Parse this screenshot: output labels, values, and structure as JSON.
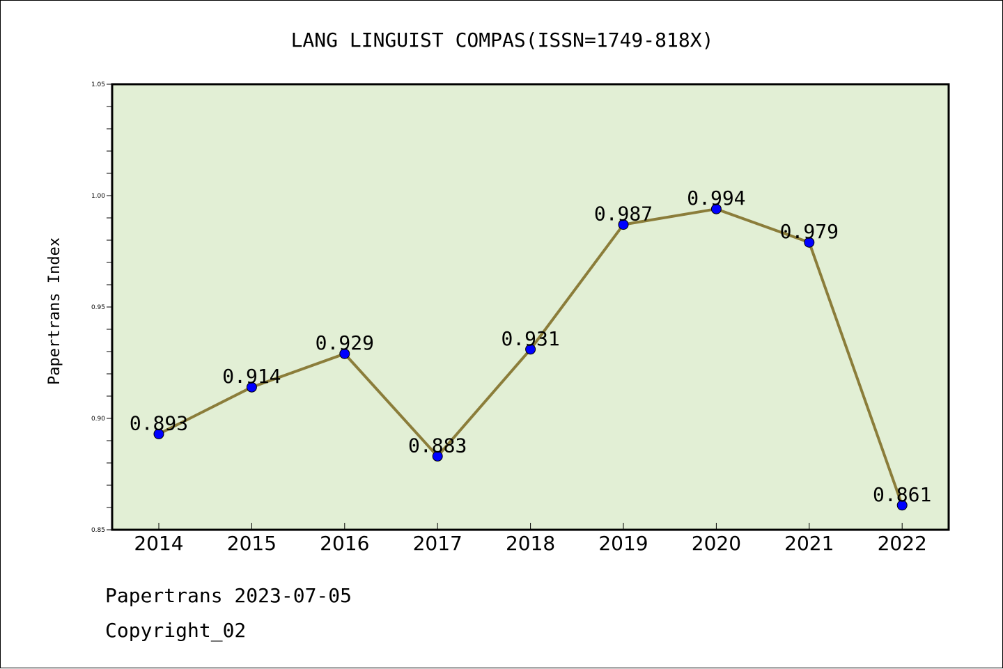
{
  "chart_data": {
    "type": "line",
    "title": "LANG LINGUIST COMPAS(ISSN=1749-818X)",
    "ylabel": "Papertrans Index",
    "xlabel": "",
    "categories": [
      "2014",
      "2015",
      "2016",
      "2017",
      "2018",
      "2019",
      "2020",
      "2021",
      "2022"
    ],
    "values": [
      0.893,
      0.914,
      0.929,
      0.883,
      0.931,
      0.987,
      0.994,
      0.979,
      0.861
    ],
    "data_labels": [
      "0.893",
      "0.914",
      "0.929",
      "0.883",
      "0.931",
      "0.987",
      "0.994",
      "0.979",
      "0.861"
    ],
    "ylim": [
      0.85,
      1.05
    ],
    "yticks": [
      "0.85",
      "0.90",
      "0.95",
      "1.00",
      "1.05"
    ],
    "grid": false,
    "colors": {
      "plot_background": "#e2efd5",
      "line": "#8b7d3a",
      "marker": "#0000ff"
    }
  },
  "footer": {
    "line1": "Papertrans 2023-07-05",
    "line2": "Copyright_02"
  }
}
